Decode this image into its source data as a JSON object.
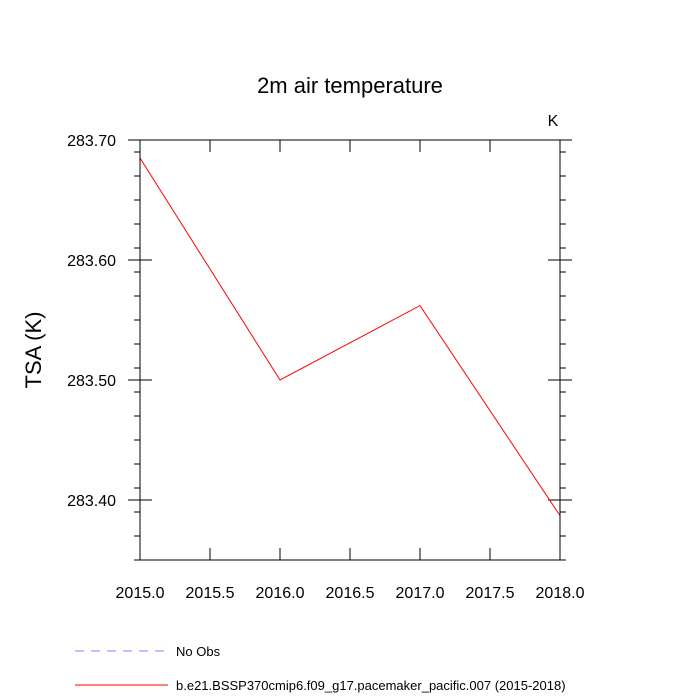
{
  "chart_data": {
    "type": "line",
    "title": "2m air temperature",
    "units_label": "K",
    "xlabel": "",
    "ylabel": "TSA  (K)",
    "xlim": [
      2015.0,
      2018.0
    ],
    "ylim": [
      283.35,
      283.7
    ],
    "x_ticks": [
      2015.0,
      2015.5,
      2016.0,
      2016.5,
      2017.0,
      2017.5,
      2018.0
    ],
    "x_tick_labels": [
      "2015.0",
      "2015.5",
      "2016.0",
      "2016.5",
      "2017.0",
      "2017.5",
      "2018.0"
    ],
    "y_ticks": [
      283.4,
      283.5,
      283.6,
      283.7
    ],
    "y_tick_labels": [
      "283.40",
      "283.50",
      "283.60",
      "283.70"
    ],
    "grid": false,
    "legend_placement": "bottom-left",
    "series": [
      {
        "name": "No Obs",
        "color": "#8080ff",
        "dash": true,
        "x": [],
        "values": []
      },
      {
        "name": "b.e21.BSSP370cmip6.f09_g17.pacemaker_pacific.007 (2015-2018)",
        "color": "#ff0000",
        "dash": false,
        "x": [
          2015.0,
          2016.0,
          2017.0,
          2018.0
        ],
        "values": [
          283.685,
          283.5,
          283.562,
          283.387
        ]
      }
    ]
  }
}
